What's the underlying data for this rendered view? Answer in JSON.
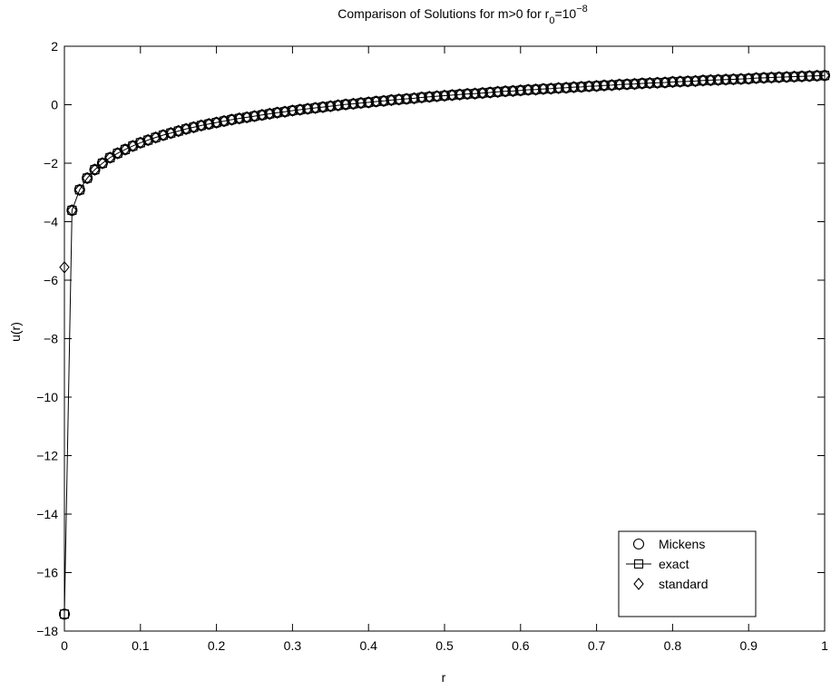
{
  "chart_data": {
    "type": "line",
    "title": {
      "main": "Comparison of Solutions for m>0 for r",
      "sub": "0",
      "eq": "=10",
      "sup": "−8"
    },
    "xlabel": "r",
    "ylabel": "u(r)",
    "xlim": [
      0,
      1
    ],
    "ylim": [
      -18,
      2
    ],
    "xticks": [
      0,
      0.1,
      0.2,
      0.3,
      0.4,
      0.5,
      0.6,
      0.7,
      0.8,
      0.9,
      1
    ],
    "xtick_labels": [
      "0",
      "0.1",
      "0.2",
      "0.3",
      "0.4",
      "0.5",
      "0.6",
      "0.7",
      "0.8",
      "0.9",
      "1"
    ],
    "yticks": [
      -18,
      -16,
      -14,
      -12,
      -10,
      -8,
      -6,
      -4,
      -2,
      0,
      2
    ],
    "ytick_labels": [
      "−18",
      "−16",
      "−14",
      "−12",
      "−10",
      "−8",
      "−6",
      "−4",
      "−2",
      "0",
      "2"
    ],
    "grid": false,
    "legend_position": "bottom-right",
    "series": [
      {
        "name": "Mickens",
        "marker": "circle",
        "line": false,
        "x": [
          0,
          0.01,
          0.02,
          0.03,
          0.04,
          0.05,
          0.06,
          0.07,
          0.08,
          0.09,
          0.1,
          0.11,
          0.12,
          0.13,
          0.14,
          0.15,
          0.16,
          0.17,
          0.18,
          0.19,
          0.2,
          0.21,
          0.22,
          0.23,
          0.24,
          0.25,
          0.26,
          0.27,
          0.28,
          0.29,
          0.3,
          0.31,
          0.32,
          0.33,
          0.34,
          0.35,
          0.36,
          0.37,
          0.38,
          0.39,
          0.4,
          0.41,
          0.42,
          0.43,
          0.44,
          0.45,
          0.46,
          0.47,
          0.48,
          0.49,
          0.5,
          0.51,
          0.52,
          0.53,
          0.54,
          0.55,
          0.56,
          0.57,
          0.58,
          0.59,
          0.6,
          0.61,
          0.62,
          0.63,
          0.64,
          0.65,
          0.66,
          0.67,
          0.68,
          0.69,
          0.7,
          0.71,
          0.72,
          0.73,
          0.74,
          0.75,
          0.76,
          0.77,
          0.78,
          0.79,
          0.8,
          0.81,
          0.82,
          0.83,
          0.84,
          0.85,
          0.86,
          0.87,
          0.88,
          0.89,
          0.9,
          0.91,
          0.92,
          0.93,
          0.94,
          0.95,
          0.96,
          0.97,
          0.98,
          0.99,
          1
        ],
        "y": [
          -17.42,
          -3.61,
          -2.91,
          -2.51,
          -2.22,
          -2.0,
          -1.81,
          -1.66,
          -1.53,
          -1.41,
          -1.3,
          -1.21,
          -1.12,
          -1.04,
          -0.97,
          -0.9,
          -0.83,
          -0.77,
          -0.71,
          -0.66,
          -0.61,
          -0.56,
          -0.51,
          -0.47,
          -0.43,
          -0.39,
          -0.35,
          -0.31,
          -0.27,
          -0.24,
          -0.2,
          -0.17,
          -0.14,
          -0.11,
          -0.08,
          -0.05,
          -0.02,
          0.01,
          0.03,
          0.06,
          0.08,
          0.11,
          0.13,
          0.16,
          0.18,
          0.2,
          0.22,
          0.25,
          0.27,
          0.29,
          0.31,
          0.33,
          0.35,
          0.37,
          0.38,
          0.4,
          0.42,
          0.44,
          0.46,
          0.47,
          0.49,
          0.51,
          0.52,
          0.54,
          0.55,
          0.57,
          0.58,
          0.6,
          0.61,
          0.63,
          0.64,
          0.66,
          0.67,
          0.69,
          0.7,
          0.71,
          0.73,
          0.74,
          0.75,
          0.76,
          0.78,
          0.79,
          0.8,
          0.81,
          0.83,
          0.84,
          0.85,
          0.86,
          0.87,
          0.88,
          0.89,
          0.91,
          0.92,
          0.93,
          0.94,
          0.95,
          0.96,
          0.97,
          0.98,
          0.99,
          1.0
        ]
      },
      {
        "name": "exact",
        "marker": "square",
        "line": true,
        "x": [
          0,
          0.01,
          0.02,
          0.03,
          0.04,
          0.05,
          0.06,
          0.07,
          0.08,
          0.09,
          0.1,
          0.11,
          0.12,
          0.13,
          0.14,
          0.15,
          0.16,
          0.17,
          0.18,
          0.19,
          0.2,
          0.21,
          0.22,
          0.23,
          0.24,
          0.25,
          0.26,
          0.27,
          0.28,
          0.29,
          0.3,
          0.31,
          0.32,
          0.33,
          0.34,
          0.35,
          0.36,
          0.37,
          0.38,
          0.39,
          0.4,
          0.41,
          0.42,
          0.43,
          0.44,
          0.45,
          0.46,
          0.47,
          0.48,
          0.49,
          0.5,
          0.51,
          0.52,
          0.53,
          0.54,
          0.55,
          0.56,
          0.57,
          0.58,
          0.59,
          0.6,
          0.61,
          0.62,
          0.63,
          0.64,
          0.65,
          0.66,
          0.67,
          0.68,
          0.69,
          0.7,
          0.71,
          0.72,
          0.73,
          0.74,
          0.75,
          0.76,
          0.77,
          0.78,
          0.79,
          0.8,
          0.81,
          0.82,
          0.83,
          0.84,
          0.85,
          0.86,
          0.87,
          0.88,
          0.89,
          0.9,
          0.91,
          0.92,
          0.93,
          0.94,
          0.95,
          0.96,
          0.97,
          0.98,
          0.99,
          1
        ],
        "y": [
          -17.42,
          -3.61,
          -2.91,
          -2.51,
          -2.22,
          -2.0,
          -1.81,
          -1.66,
          -1.53,
          -1.41,
          -1.3,
          -1.21,
          -1.12,
          -1.04,
          -0.97,
          -0.9,
          -0.83,
          -0.77,
          -0.71,
          -0.66,
          -0.61,
          -0.56,
          -0.51,
          -0.47,
          -0.43,
          -0.39,
          -0.35,
          -0.31,
          -0.27,
          -0.24,
          -0.2,
          -0.17,
          -0.14,
          -0.11,
          -0.08,
          -0.05,
          -0.02,
          0.01,
          0.03,
          0.06,
          0.08,
          0.11,
          0.13,
          0.16,
          0.18,
          0.2,
          0.22,
          0.25,
          0.27,
          0.29,
          0.31,
          0.33,
          0.35,
          0.37,
          0.38,
          0.4,
          0.42,
          0.44,
          0.46,
          0.47,
          0.49,
          0.51,
          0.52,
          0.54,
          0.55,
          0.57,
          0.58,
          0.6,
          0.61,
          0.63,
          0.64,
          0.66,
          0.67,
          0.69,
          0.7,
          0.71,
          0.73,
          0.74,
          0.75,
          0.76,
          0.78,
          0.79,
          0.8,
          0.81,
          0.83,
          0.84,
          0.85,
          0.86,
          0.87,
          0.88,
          0.89,
          0.91,
          0.92,
          0.93,
          0.94,
          0.95,
          0.96,
          0.97,
          0.98,
          0.99,
          1.0
        ]
      },
      {
        "name": "standard",
        "marker": "diamond",
        "line": false,
        "x": [
          0,
          0.01,
          0.02,
          0.03,
          0.04,
          0.05,
          0.06,
          0.07,
          0.08,
          0.09,
          0.1,
          0.11,
          0.12,
          0.13,
          0.14,
          0.15,
          0.16,
          0.17,
          0.18,
          0.19,
          0.2,
          0.21,
          0.22,
          0.23,
          0.24,
          0.25,
          0.26,
          0.27,
          0.28,
          0.29,
          0.3,
          0.31,
          0.32,
          0.33,
          0.34,
          0.35,
          0.36,
          0.37,
          0.38,
          0.39,
          0.4,
          0.41,
          0.42,
          0.43,
          0.44,
          0.45,
          0.46,
          0.47,
          0.48,
          0.49,
          0.5,
          0.51,
          0.52,
          0.53,
          0.54,
          0.55,
          0.56,
          0.57,
          0.58,
          0.59,
          0.6,
          0.61,
          0.62,
          0.63,
          0.64,
          0.65,
          0.66,
          0.67,
          0.68,
          0.69,
          0.7,
          0.71,
          0.72,
          0.73,
          0.74,
          0.75,
          0.76,
          0.77,
          0.78,
          0.79,
          0.8,
          0.81,
          0.82,
          0.83,
          0.84,
          0.85,
          0.86,
          0.87,
          0.88,
          0.89,
          0.9,
          0.91,
          0.92,
          0.93,
          0.94,
          0.95,
          0.96,
          0.97,
          0.98,
          0.99,
          1
        ],
        "y": [
          -5.56,
          -3.61,
          -2.91,
          -2.51,
          -2.22,
          -2.0,
          -1.81,
          -1.66,
          -1.53,
          -1.41,
          -1.3,
          -1.21,
          -1.12,
          -1.04,
          -0.97,
          -0.9,
          -0.83,
          -0.77,
          -0.71,
          -0.66,
          -0.61,
          -0.56,
          -0.51,
          -0.47,
          -0.43,
          -0.39,
          -0.35,
          -0.31,
          -0.27,
          -0.24,
          -0.2,
          -0.17,
          -0.14,
          -0.11,
          -0.08,
          -0.05,
          -0.02,
          0.01,
          0.03,
          0.06,
          0.08,
          0.11,
          0.13,
          0.16,
          0.18,
          0.2,
          0.22,
          0.25,
          0.27,
          0.29,
          0.31,
          0.33,
          0.35,
          0.37,
          0.38,
          0.4,
          0.42,
          0.44,
          0.46,
          0.47,
          0.49,
          0.51,
          0.52,
          0.54,
          0.55,
          0.57,
          0.58,
          0.6,
          0.61,
          0.63,
          0.64,
          0.66,
          0.67,
          0.69,
          0.7,
          0.71,
          0.73,
          0.74,
          0.75,
          0.76,
          0.78,
          0.79,
          0.8,
          0.81,
          0.83,
          0.84,
          0.85,
          0.86,
          0.87,
          0.88,
          0.89,
          0.91,
          0.92,
          0.93,
          0.94,
          0.95,
          0.96,
          0.97,
          0.98,
          0.99,
          1.0
        ]
      }
    ]
  }
}
